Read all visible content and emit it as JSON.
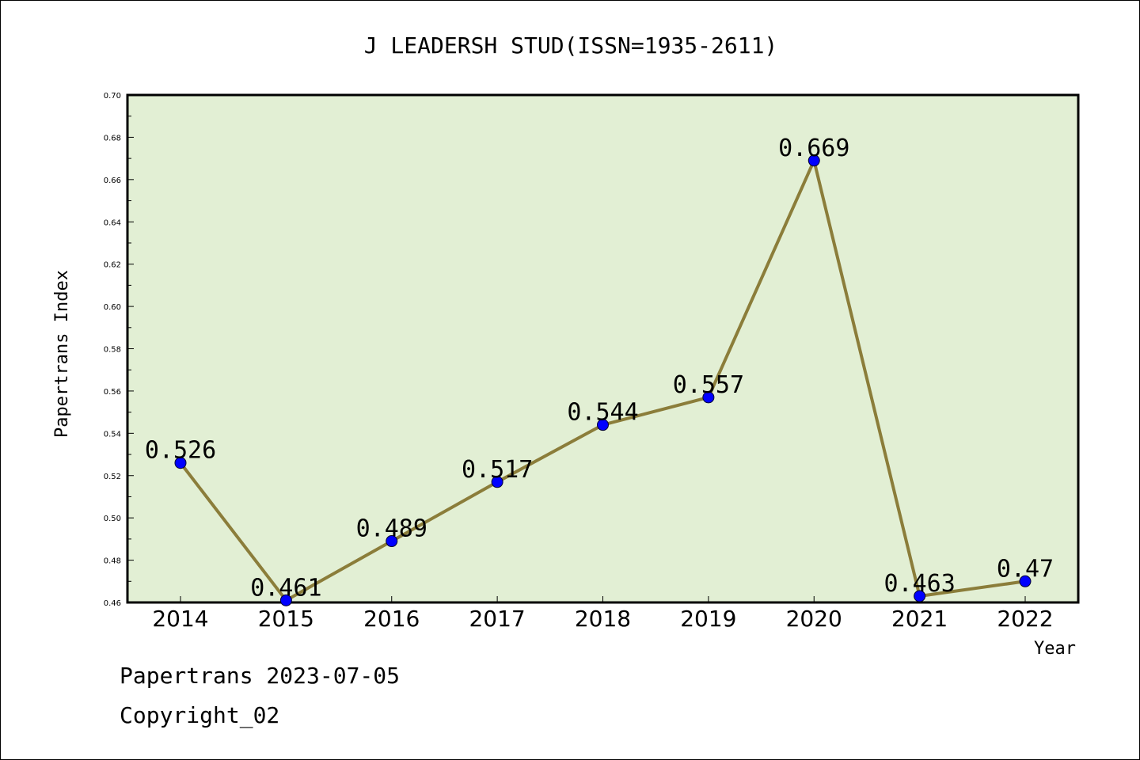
{
  "chart_data": {
    "type": "line",
    "title": "J LEADERSH STUD(ISSN=1935-2611)",
    "xlabel": "Year",
    "ylabel": "Papertrans Index",
    "categories": [
      "2014",
      "2015",
      "2016",
      "2017",
      "2018",
      "2019",
      "2020",
      "2021",
      "2022"
    ],
    "series": [
      {
        "values": [
          0.526,
          0.461,
          0.489,
          0.517,
          0.544,
          0.557,
          0.669,
          0.463,
          0.47
        ],
        "labels": [
          "0.526",
          "0.461",
          "0.489",
          "0.517",
          "0.544",
          "0.557",
          "0.669",
          "0.463",
          "0.47"
        ]
      }
    ],
    "ylim": [
      0.46,
      0.7
    ],
    "yticks": [
      "0.46",
      "0.48",
      "0.50",
      "0.52",
      "0.54",
      "0.56",
      "0.58",
      "0.60",
      "0.62",
      "0.64",
      "0.66",
      "0.68",
      "0.70"
    ],
    "grid": false,
    "colors": {
      "plot_background": "#e2efd4",
      "line": "#8b7d3a",
      "marker": "#0000ff"
    }
  },
  "footer": {
    "date": "Papertrans 2023-07-05",
    "copyright": "Copyright_02"
  }
}
